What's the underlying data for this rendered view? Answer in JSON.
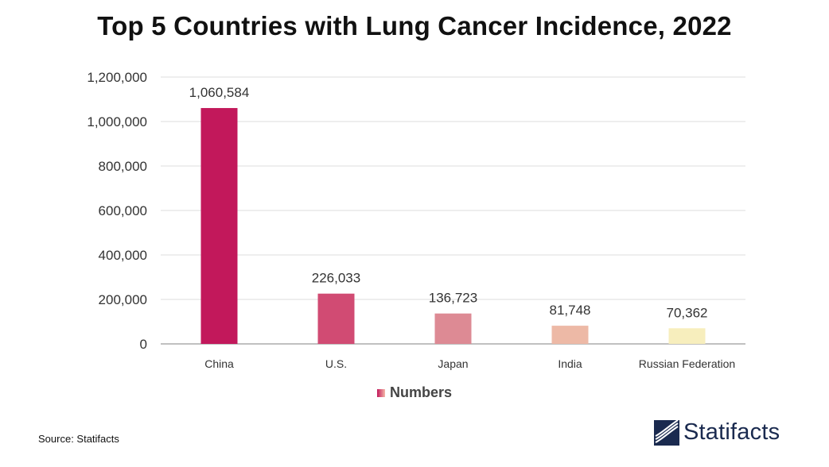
{
  "chart_data": {
    "type": "bar",
    "title": "Top 5 Countries with Lung Cancer Incidence, 2022",
    "categories": [
      "China",
      "U.S.",
      "Japan",
      "India",
      "Russian Federation"
    ],
    "series": [
      {
        "name": "Numbers",
        "values": [
          1060584,
          226033,
          136723,
          81748,
          70362
        ]
      }
    ],
    "data_labels": [
      "1,060,584",
      "226,033",
      "136,723",
      "81,748",
      "70,362"
    ],
    "yticks": [
      "0",
      "200,000",
      "400,000",
      "600,000",
      "800,000",
      "1,000,000",
      "1,200,000"
    ],
    "ylim": [
      0,
      1200000
    ],
    "grid": true,
    "legend": "bottom-center",
    "bar_colors": [
      "#c2185b",
      "#d14b73",
      "#dd8a94",
      "#edb9a6",
      "#f7eebd"
    ]
  },
  "legend": {
    "label": "Numbers"
  },
  "source": "Source: Statifacts",
  "brand": {
    "name": "Statifacts",
    "color": "#1a2a4f"
  }
}
